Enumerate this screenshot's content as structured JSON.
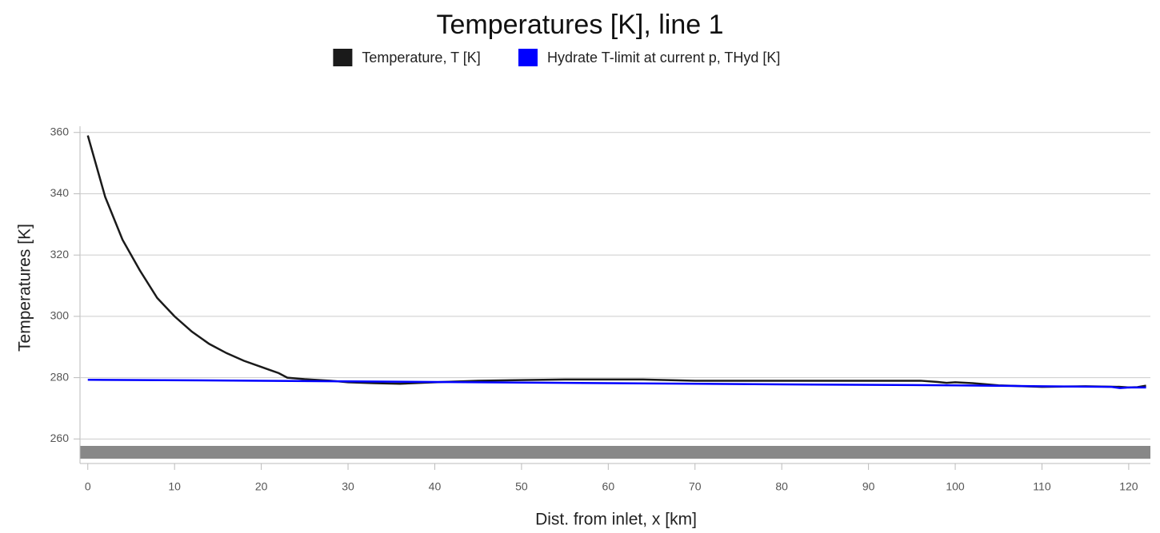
{
  "chart_data": {
    "type": "line",
    "title": "Temperatures [K], line 1",
    "x_label": "Dist. from inlet, x [km]",
    "y_label": "Temperatures [K]",
    "xlim": [
      -0.9,
      122.5
    ],
    "ylim": [
      252,
      361.5
    ],
    "xticks": [
      0,
      10,
      20,
      30,
      40,
      50,
      60,
      70,
      80,
      90,
      100,
      110,
      120
    ],
    "yticks": [
      260,
      280,
      300,
      320,
      340,
      360
    ],
    "grid": true,
    "legend": "top",
    "series": [
      {
        "name": "Temperature, T [K]",
        "color": "#1a1a1a",
        "x": [
          0,
          2,
          4,
          6,
          8,
          10,
          12,
          14,
          16,
          18,
          20,
          21,
          22,
          23,
          25,
          28,
          30,
          33,
          36,
          40,
          45,
          50,
          55,
          60,
          64,
          70,
          80,
          90,
          96,
          98,
          99,
          100,
          102,
          105,
          110,
          115,
          119,
          120,
          121,
          122
        ],
        "values": [
          359,
          339,
          325,
          315,
          306,
          300,
          295,
          291,
          288,
          285.5,
          283.5,
          282.5,
          281.5,
          280,
          279.5,
          279,
          278.5,
          278.2,
          278,
          278.5,
          279,
          279.2,
          279.4,
          279.4,
          279.4,
          279,
          279,
          279,
          279,
          278.6,
          278.3,
          278.5,
          278.2,
          277.5,
          277,
          277.2,
          277,
          276.8,
          276.9,
          277.4
        ]
      },
      {
        "name": "Hydrate T-limit at current p, THyd [K]",
        "color": "#0000ff",
        "x": [
          0,
          20,
          40,
          60,
          80,
          100,
          110,
          118,
          119,
          120,
          122
        ],
        "values": [
          279.3,
          279,
          278.6,
          278.2,
          277.8,
          277.5,
          277.2,
          277,
          276.6,
          276.8,
          276.8
        ]
      }
    ]
  }
}
